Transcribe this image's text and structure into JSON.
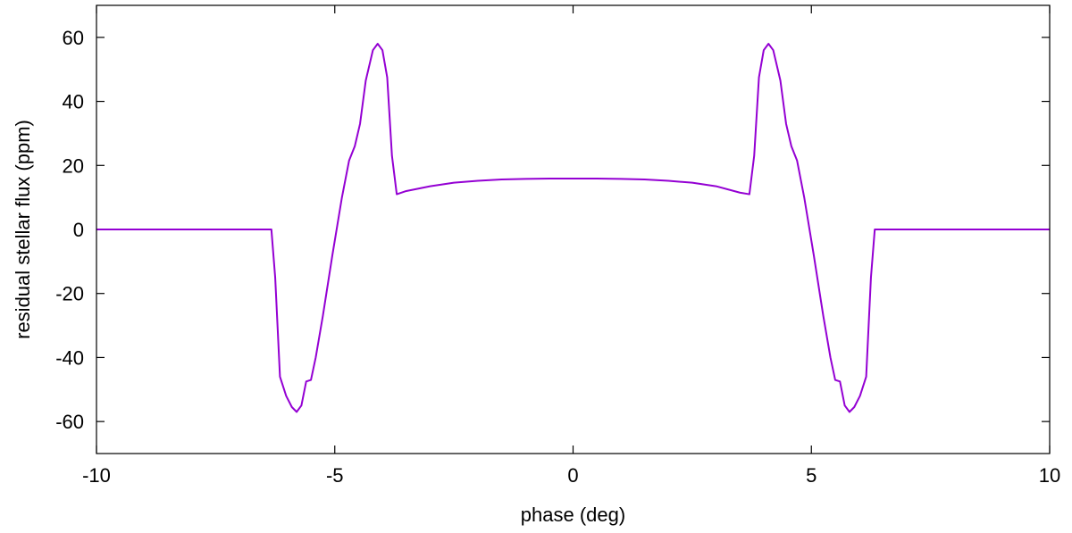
{
  "chart_data": {
    "type": "line",
    "title": "",
    "xlabel": "phase (deg)",
    "ylabel": "residual stellar flux (ppm)",
    "xlim": [
      -10,
      10
    ],
    "ylim": [
      -70,
      70
    ],
    "xticks": [
      -10,
      -5,
      0,
      5,
      10
    ],
    "xtick_labels": [
      "-10",
      "-5",
      "0",
      "5",
      "10"
    ],
    "yticks": [
      -60,
      -40,
      -20,
      0,
      20,
      40,
      60
    ],
    "ytick_labels": [
      "-60",
      "-40",
      "-20",
      "0",
      "20",
      "40",
      "60"
    ],
    "grid": false,
    "legend": "none",
    "series": [
      {
        "color": "#9400d3",
        "x": [
          -10,
          -6.33,
          -6.25,
          -6.15,
          -6.02,
          -5.9,
          -5.8,
          -5.7,
          -5.6,
          -5.5,
          -5.4,
          -5.25,
          -5.05,
          -4.85,
          -4.7,
          -4.58,
          -4.47,
          -4.35,
          -4.2,
          -4.1,
          -4.0,
          -3.9,
          -3.8,
          -3.7,
          -3.5,
          -3.0,
          -2.5,
          -2.0,
          -1.5,
          -1.0,
          -0.5,
          0,
          0.5,
          1.0,
          1.5,
          2.0,
          2.5,
          3.0,
          3.5,
          3.7,
          3.8,
          3.9,
          4.0,
          4.1,
          4.2,
          4.35,
          4.47,
          4.58,
          4.7,
          4.85,
          5.05,
          5.25,
          5.4,
          5.5,
          5.6,
          5.7,
          5.8,
          5.9,
          6.02,
          6.15,
          6.25,
          6.33,
          10
        ],
        "y": [
          0,
          0,
          -15,
          -46,
          -52,
          -55.5,
          -57,
          -55,
          -47.5,
          -47,
          -40,
          -27,
          -8,
          10,
          21.5,
          26,
          33,
          46.5,
          56,
          58,
          56,
          47.5,
          23,
          11,
          12,
          13.5,
          14.6,
          15.2,
          15.6,
          15.8,
          15.9,
          15.9,
          15.9,
          15.8,
          15.6,
          15.2,
          14.6,
          13.5,
          11.5,
          11,
          23,
          47.5,
          56,
          58,
          56,
          46.5,
          33,
          26,
          21.5,
          10,
          -8,
          -27,
          -40,
          -47,
          -47.5,
          -55,
          -57,
          -55.5,
          -52,
          -46,
          -15,
          0,
          0
        ]
      }
    ]
  }
}
